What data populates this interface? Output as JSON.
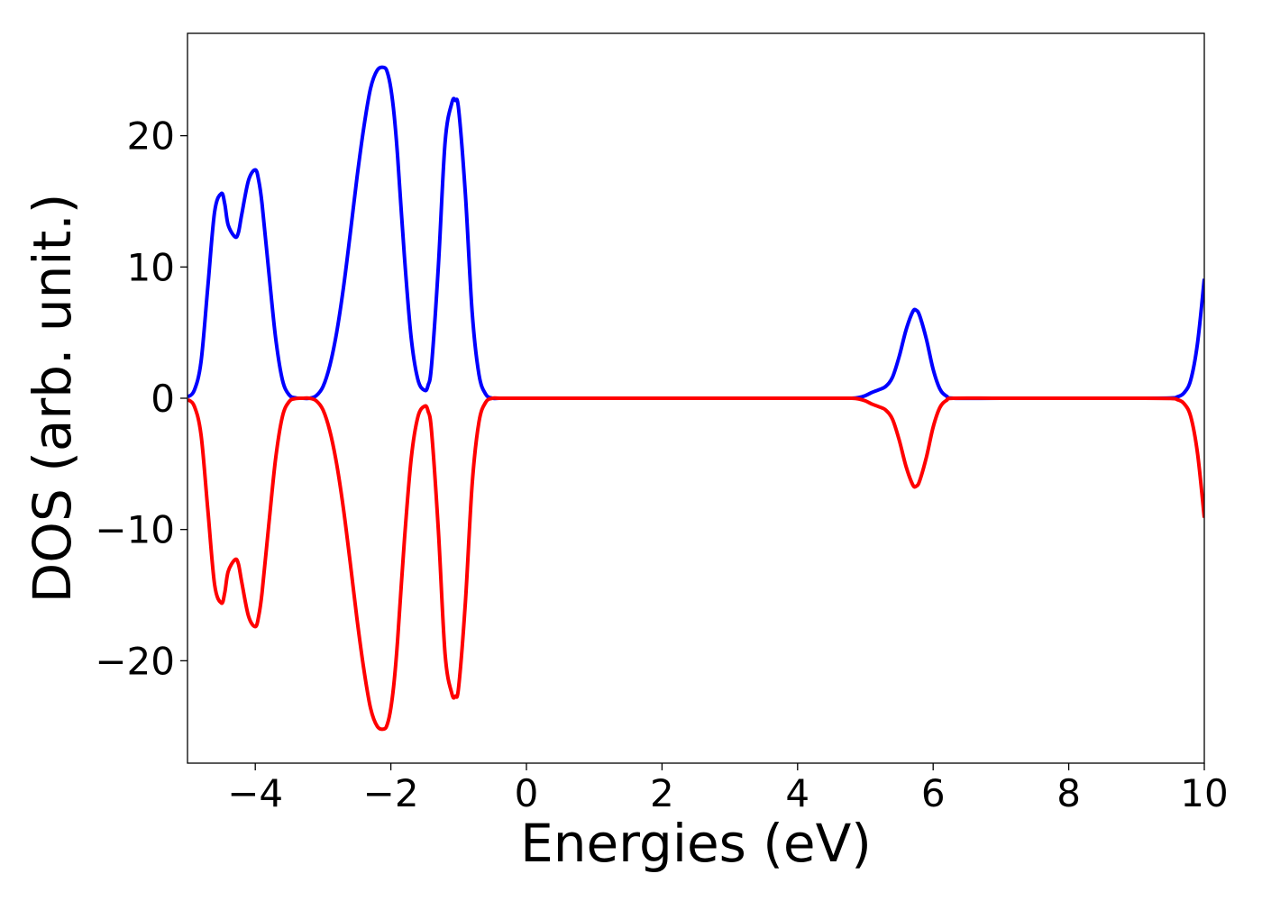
{
  "chart_data": {
    "type": "line",
    "title": "",
    "xlabel": "Energies (eV)",
    "ylabel": "DOS (arb. unit.)",
    "xlim": [
      -5,
      10
    ],
    "ylim": [
      -27.8,
      27.8
    ],
    "x_ticks": [
      -4,
      -2,
      0,
      2,
      4,
      6,
      8,
      10
    ],
    "x_tick_labels": [
      "−4",
      "−2",
      "0",
      "2",
      "4",
      "6",
      "8",
      "10"
    ],
    "y_ticks": [
      -20,
      -10,
      0,
      10,
      20
    ],
    "y_tick_labels": [
      "−20",
      "−10",
      "0",
      "10",
      "20"
    ],
    "grid": false,
    "legend": "none",
    "series": [
      {
        "color": "#0000ff",
        "x": [
          -5.0,
          -4.9,
          -4.8,
          -4.7,
          -4.6,
          -4.5,
          -4.45,
          -4.4,
          -4.3,
          -4.25,
          -4.2,
          -4.1,
          -4.0,
          -3.95,
          -3.9,
          -3.8,
          -3.7,
          -3.6,
          -3.5,
          -3.4,
          -3.3,
          -3.2,
          -3.1,
          -3.0,
          -2.9,
          -2.8,
          -2.7,
          -2.6,
          -2.5,
          -2.4,
          -2.3,
          -2.2,
          -2.1,
          -2.05,
          -2.0,
          -1.95,
          -1.9,
          -1.8,
          -1.7,
          -1.6,
          -1.5,
          -1.45,
          -1.4,
          -1.3,
          -1.2,
          -1.1,
          -1.05,
          -1.0,
          -0.9,
          -0.8,
          -0.7,
          -0.6,
          -0.5,
          -0.4,
          0.0,
          1.0,
          2.0,
          3.0,
          4.0,
          4.6,
          4.8,
          4.9,
          5.0,
          5.1,
          5.2,
          5.3,
          5.4,
          5.5,
          5.6,
          5.7,
          5.75,
          5.8,
          5.9,
          6.0,
          6.1,
          6.2,
          6.3,
          7.0,
          8.0,
          9.0,
          9.5,
          9.6,
          9.7,
          9.8,
          9.9,
          10.0
        ],
        "y": [
          0.1,
          0.6,
          2.8,
          8.5,
          14.2,
          15.6,
          14.8,
          13.2,
          12.3,
          12.6,
          14.0,
          16.6,
          17.4,
          16.6,
          14.8,
          9.6,
          4.6,
          1.4,
          0.25,
          0.02,
          0.0,
          0.0,
          0.2,
          0.9,
          2.5,
          5.0,
          8.4,
          12.5,
          16.8,
          20.6,
          23.6,
          25.0,
          25.2,
          24.8,
          23.6,
          21.5,
          18.4,
          10.8,
          4.6,
          1.4,
          0.6,
          1.0,
          2.5,
          10.0,
          19.5,
          22.5,
          22.7,
          22.0,
          15.5,
          6.5,
          1.8,
          0.3,
          0.0,
          0.0,
          0.0,
          0.0,
          0.0,
          0.0,
          0.0,
          0.0,
          0.0,
          0.05,
          0.2,
          0.45,
          0.65,
          0.9,
          1.6,
          3.2,
          5.2,
          6.6,
          6.7,
          6.3,
          4.5,
          2.2,
          0.7,
          0.15,
          0.0,
          0.0,
          0.0,
          0.0,
          0.02,
          0.1,
          0.4,
          1.4,
          4.2,
          9.1
        ]
      },
      {
        "color": "#ff0000",
        "x": [
          -5.0,
          -4.9,
          -4.8,
          -4.7,
          -4.6,
          -4.5,
          -4.45,
          -4.4,
          -4.3,
          -4.25,
          -4.2,
          -4.1,
          -4.0,
          -3.95,
          -3.9,
          -3.8,
          -3.7,
          -3.6,
          -3.5,
          -3.4,
          -3.3,
          -3.2,
          -3.1,
          -3.0,
          -2.9,
          -2.8,
          -2.7,
          -2.6,
          -2.5,
          -2.4,
          -2.3,
          -2.2,
          -2.1,
          -2.05,
          -2.0,
          -1.95,
          -1.9,
          -1.8,
          -1.7,
          -1.6,
          -1.5,
          -1.45,
          -1.4,
          -1.3,
          -1.2,
          -1.1,
          -1.05,
          -1.0,
          -0.9,
          -0.8,
          -0.7,
          -0.6,
          -0.5,
          -0.4,
          0.0,
          1.0,
          2.0,
          3.0,
          4.0,
          4.6,
          4.8,
          4.9,
          5.0,
          5.1,
          5.2,
          5.3,
          5.4,
          5.5,
          5.6,
          5.7,
          5.75,
          5.8,
          5.9,
          6.0,
          6.1,
          6.2,
          6.3,
          7.0,
          8.0,
          9.0,
          9.5,
          9.6,
          9.7,
          9.8,
          9.9,
          10.0
        ],
        "y": [
          -0.1,
          -0.6,
          -2.8,
          -8.5,
          -14.2,
          -15.6,
          -14.8,
          -13.2,
          -12.3,
          -12.6,
          -14.0,
          -16.6,
          -17.4,
          -16.6,
          -14.8,
          -9.6,
          -4.6,
          -1.4,
          -0.25,
          -0.02,
          0.0,
          0.0,
          -0.2,
          -0.9,
          -2.5,
          -5.0,
          -8.4,
          -12.5,
          -16.8,
          -20.6,
          -23.6,
          -25.0,
          -25.2,
          -24.8,
          -23.6,
          -21.5,
          -18.4,
          -10.8,
          -4.6,
          -1.4,
          -0.6,
          -1.0,
          -2.5,
          -10.0,
          -19.5,
          -22.5,
          -22.7,
          -22.0,
          -15.5,
          -6.5,
          -1.8,
          -0.3,
          0.0,
          0.0,
          0.0,
          0.0,
          0.0,
          0.0,
          0.0,
          0.0,
          0.0,
          -0.05,
          -0.2,
          -0.45,
          -0.65,
          -0.9,
          -1.6,
          -3.2,
          -5.2,
          -6.6,
          -6.7,
          -6.3,
          -4.5,
          -2.2,
          -0.7,
          -0.15,
          0.0,
          0.0,
          0.0,
          0.0,
          -0.02,
          -0.1,
          -0.4,
          -1.4,
          -4.2,
          -9.1
        ]
      }
    ]
  }
}
